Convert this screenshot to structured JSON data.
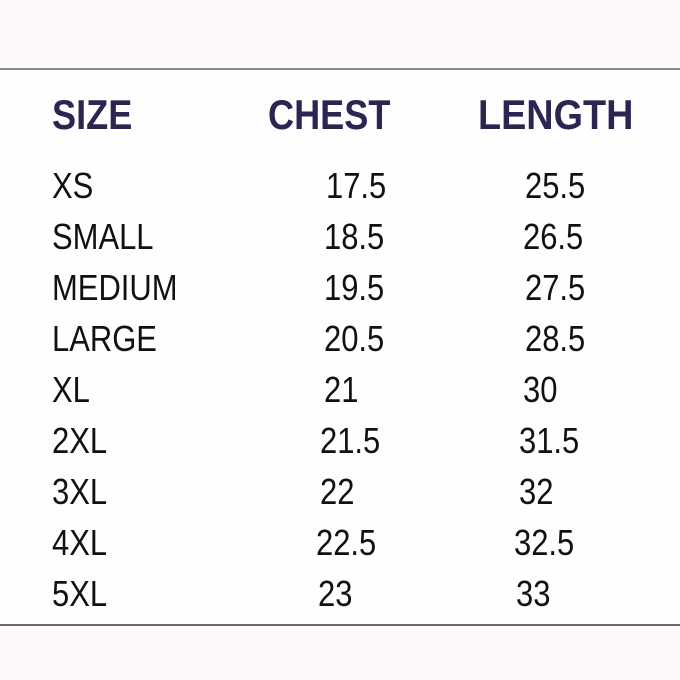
{
  "table": {
    "headers": [
      "SIZE",
      "CHEST",
      "LENGTH"
    ],
    "rows": [
      {
        "size": "XS",
        "chest": "17.5",
        "length": "25.5"
      },
      {
        "size": "SMALL",
        "chest": "18.5",
        "length": "26.5"
      },
      {
        "size": "MEDIUM",
        "chest": "19.5",
        "length": "27.5"
      },
      {
        "size": "LARGE",
        "chest": "20.5",
        "length": "28.5"
      },
      {
        "size": "XL",
        "chest": "21",
        "length": "30"
      },
      {
        "size": "2XL",
        "chest": "21.5",
        "length": "31.5"
      },
      {
        "size": "3XL",
        "chest": "22",
        "length": "32"
      },
      {
        "size": "4XL",
        "chest": "22.5",
        "length": "32.5"
      },
      {
        "size": "5XL",
        "chest": "23",
        "length": "33"
      }
    ]
  },
  "colors": {
    "header_text": "#2b2552",
    "body_text": "#111111",
    "background": "#fefefe"
  }
}
